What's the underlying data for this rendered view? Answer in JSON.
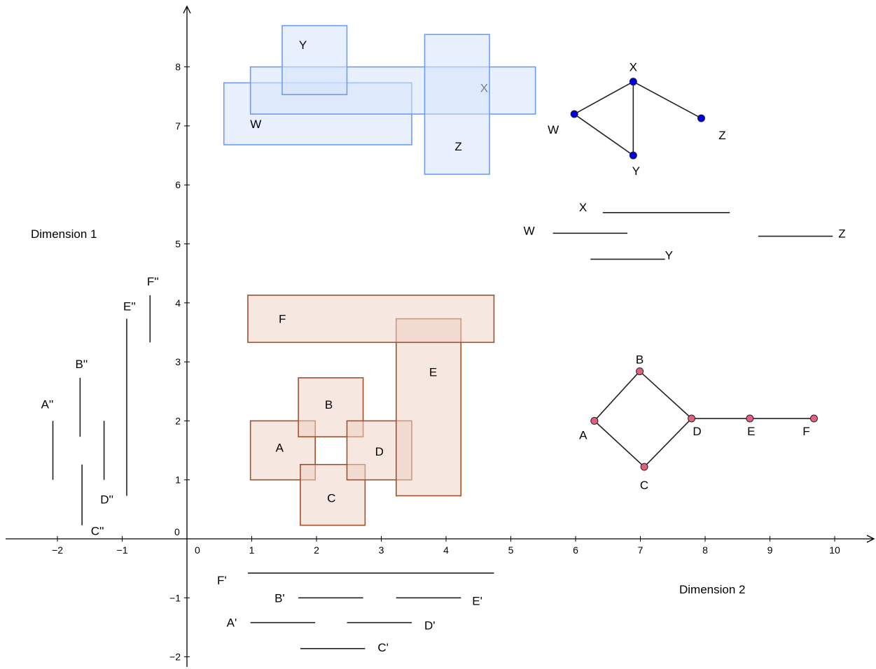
{
  "axis_labels": {
    "x": "Dimension 2",
    "y": "Dimension 1"
  },
  "x_ticks": [
    {
      "value": -2,
      "label": "−2"
    },
    {
      "value": -1,
      "label": "−1"
    },
    {
      "value": 1,
      "label": "1"
    },
    {
      "value": 2,
      "label": "2"
    },
    {
      "value": 3,
      "label": "3"
    },
    {
      "value": 4,
      "label": "4"
    },
    {
      "value": 5,
      "label": "5"
    },
    {
      "value": 6,
      "label": "6"
    },
    {
      "value": 7,
      "label": "7"
    },
    {
      "value": 8,
      "label": "8"
    },
    {
      "value": 9,
      "label": "9"
    },
    {
      "value": 10,
      "label": "10"
    }
  ],
  "y_ticks": [
    {
      "value": -2,
      "label": "−2"
    },
    {
      "value": -1,
      "label": "−1"
    },
    {
      "value": 1,
      "label": "1"
    },
    {
      "value": 2,
      "label": "2"
    },
    {
      "value": 3,
      "label": "3"
    },
    {
      "value": 4,
      "label": "4"
    },
    {
      "value": 5,
      "label": "5"
    },
    {
      "value": 6,
      "label": "6"
    },
    {
      "value": 7,
      "label": "7"
    },
    {
      "value": 8,
      "label": "8"
    }
  ],
  "origin_x_label": "0",
  "origin_y_label": "0",
  "colors": {
    "brown_stroke": "#a0522d",
    "brown_fill": "#efd3c7",
    "blue_stroke": "#6d9eeb",
    "blue_fill": "#d6e4fb",
    "blue_vertex": "#0000e0",
    "pink_vertex": "#e06080"
  },
  "rects_brown": [
    {
      "name": "A",
      "label": "A",
      "x1": 0.98,
      "x2": 1.98,
      "y1": 1.0,
      "y2": 2.0
    },
    {
      "name": "B",
      "label": "B",
      "x1": 1.72,
      "x2": 2.72,
      "y1": 1.73,
      "y2": 2.73
    },
    {
      "name": "C",
      "label": "C",
      "x1": 1.75,
      "x2": 2.75,
      "y1": 0.23,
      "y2": 1.26
    },
    {
      "name": "D",
      "label": "D",
      "x1": 2.47,
      "x2": 3.47,
      "y1": 1.0,
      "y2": 2.0
    },
    {
      "name": "E",
      "label": "E",
      "x1": 3.23,
      "x2": 4.23,
      "y1": 0.73,
      "y2": 3.73
    },
    {
      "name": "F",
      "label": "F",
      "x1": 0.94,
      "x2": 4.74,
      "y1": 3.33,
      "y2": 4.13
    }
  ],
  "rects_blue": [
    {
      "name": "W",
      "label": "W",
      "x1": 0.57,
      "x2": 3.47,
      "y1": 6.68,
      "y2": 7.73
    },
    {
      "name": "X",
      "label": "X",
      "x1": 0.98,
      "x2": 5.38,
      "y1": 7.2,
      "y2": 8.0
    },
    {
      "name": "Y",
      "label": "Y",
      "x1": 1.47,
      "x2": 2.47,
      "y1": 7.53,
      "y2": 8.7
    },
    {
      "name": "Z",
      "label": "Z",
      "x1": 3.67,
      "x2": 4.67,
      "y1": 6.18,
      "y2": 8.55
    }
  ],
  "bottom_segments": [
    {
      "name": "F'",
      "label": "F'",
      "x1": 0.94,
      "x2": 4.74,
      "y": -0.58
    },
    {
      "name": "B'",
      "label": "B'",
      "x1": 1.72,
      "x2": 2.72,
      "y": -1.0
    },
    {
      "name": "E'",
      "label": "E'",
      "x1": 3.23,
      "x2": 4.23,
      "y": -1.0
    },
    {
      "name": "A'",
      "label": "A'",
      "x1": 0.98,
      "x2": 1.98,
      "y": -1.42
    },
    {
      "name": "D'",
      "label": "D'",
      "x1": 2.47,
      "x2": 3.47,
      "y": -1.42
    },
    {
      "name": "C'",
      "label": "C'",
      "x1": 1.75,
      "x2": 2.75,
      "y": -1.86
    }
  ],
  "left_segments": [
    {
      "name": "A''",
      "label": "A''",
      "x": -2.07,
      "y1": 1.0,
      "y2": 2.0
    },
    {
      "name": "B''",
      "label": "B''",
      "x": -1.65,
      "y1": 1.73,
      "y2": 2.73
    },
    {
      "name": "C''",
      "label": "C''",
      "x": -1.62,
      "y1": 0.23,
      "y2": 1.26
    },
    {
      "name": "D''",
      "label": "D''",
      "x": -1.28,
      "y1": 1.0,
      "y2": 2.0
    },
    {
      "name": "E''",
      "label": "E''",
      "x": -0.93,
      "y1": 0.73,
      "y2": 3.73
    },
    {
      "name": "F''",
      "label": "F''",
      "x": -0.57,
      "y1": 3.33,
      "y2": 4.13
    }
  ],
  "blue_intervals": [
    {
      "name": "X",
      "label": "X",
      "x1": 6.42,
      "x2": 8.38,
      "y": 5.53
    },
    {
      "name": "W",
      "label": "W",
      "x1": 5.65,
      "x2": 6.8,
      "y": 5.18
    },
    {
      "name": "Z",
      "label": "Z",
      "x1": 8.82,
      "x2": 9.97,
      "y": 5.13
    },
    {
      "name": "Y",
      "label": "Y",
      "x1": 6.23,
      "x2": 7.38,
      "y": 4.74
    }
  ],
  "graph_brown": {
    "nodes": [
      {
        "id": "A",
        "label": "A",
        "x": 6.29,
        "y": 2.0
      },
      {
        "id": "B",
        "label": "B",
        "x": 6.99,
        "y": 2.84
      },
      {
        "id": "C",
        "label": "C",
        "x": 7.06,
        "y": 1.22
      },
      {
        "id": "D",
        "label": "D",
        "x": 7.79,
        "y": 2.04
      },
      {
        "id": "E",
        "label": "E",
        "x": 8.69,
        "y": 2.04
      },
      {
        "id": "F",
        "label": "F",
        "x": 9.68,
        "y": 2.04
      }
    ],
    "edges": [
      [
        "A",
        "B"
      ],
      [
        "B",
        "D"
      ],
      [
        "A",
        "C"
      ],
      [
        "C",
        "D"
      ],
      [
        "D",
        "E"
      ],
      [
        "E",
        "F"
      ]
    ]
  },
  "graph_blue": {
    "nodes": [
      {
        "id": "W",
        "label": "W",
        "x": 5.98,
        "y": 7.2
      },
      {
        "id": "X",
        "label": "X",
        "x": 6.89,
        "y": 7.75
      },
      {
        "id": "Y",
        "label": "Y",
        "x": 6.89,
        "y": 6.5
      },
      {
        "id": "Z",
        "label": "Z",
        "x": 7.94,
        "y": 7.13
      }
    ],
    "edges": [
      [
        "W",
        "X"
      ],
      [
        "W",
        "Y"
      ],
      [
        "X",
        "Y"
      ],
      [
        "X",
        "Z"
      ]
    ]
  }
}
